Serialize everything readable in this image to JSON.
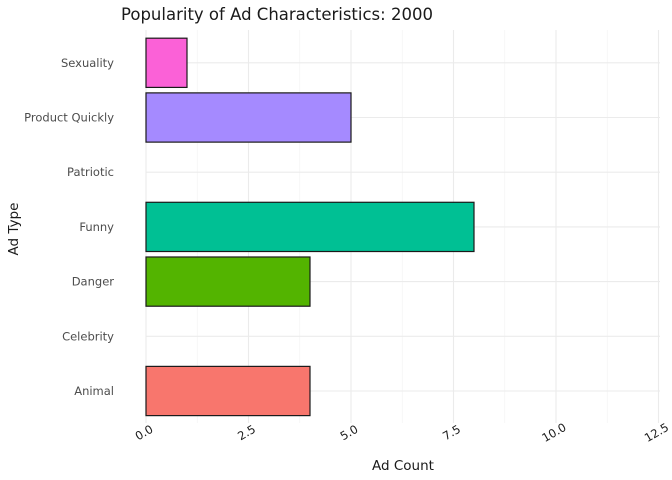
{
  "chart_data": {
    "type": "bar",
    "orientation": "horizontal",
    "title": "Popularity of Ad Characteristics: 2000",
    "xlabel": "Ad Count",
    "ylabel": "Ad Type",
    "categories": [
      "Animal",
      "Celebrity",
      "Danger",
      "Funny",
      "Patriotic",
      "Product Quickly",
      "Sexuality"
    ],
    "values": [
      4,
      0,
      4,
      8,
      0,
      5,
      1
    ],
    "colors": [
      "#F8766D",
      "#C49A00",
      "#53B400",
      "#00C094",
      "#00B6EB",
      "#A58AFF",
      "#FB61D7"
    ],
    "xlim": [
      0,
      12.5
    ],
    "x_ticks": [
      0,
      2.5,
      5,
      7.5,
      10,
      12.5
    ],
    "x_tick_labels": [
      "0.0",
      "2.5",
      "5.0",
      "7.5",
      "10.0",
      "12.5"
    ],
    "x_tick_rotation_deg": -30,
    "grid": true,
    "legend": "none"
  }
}
